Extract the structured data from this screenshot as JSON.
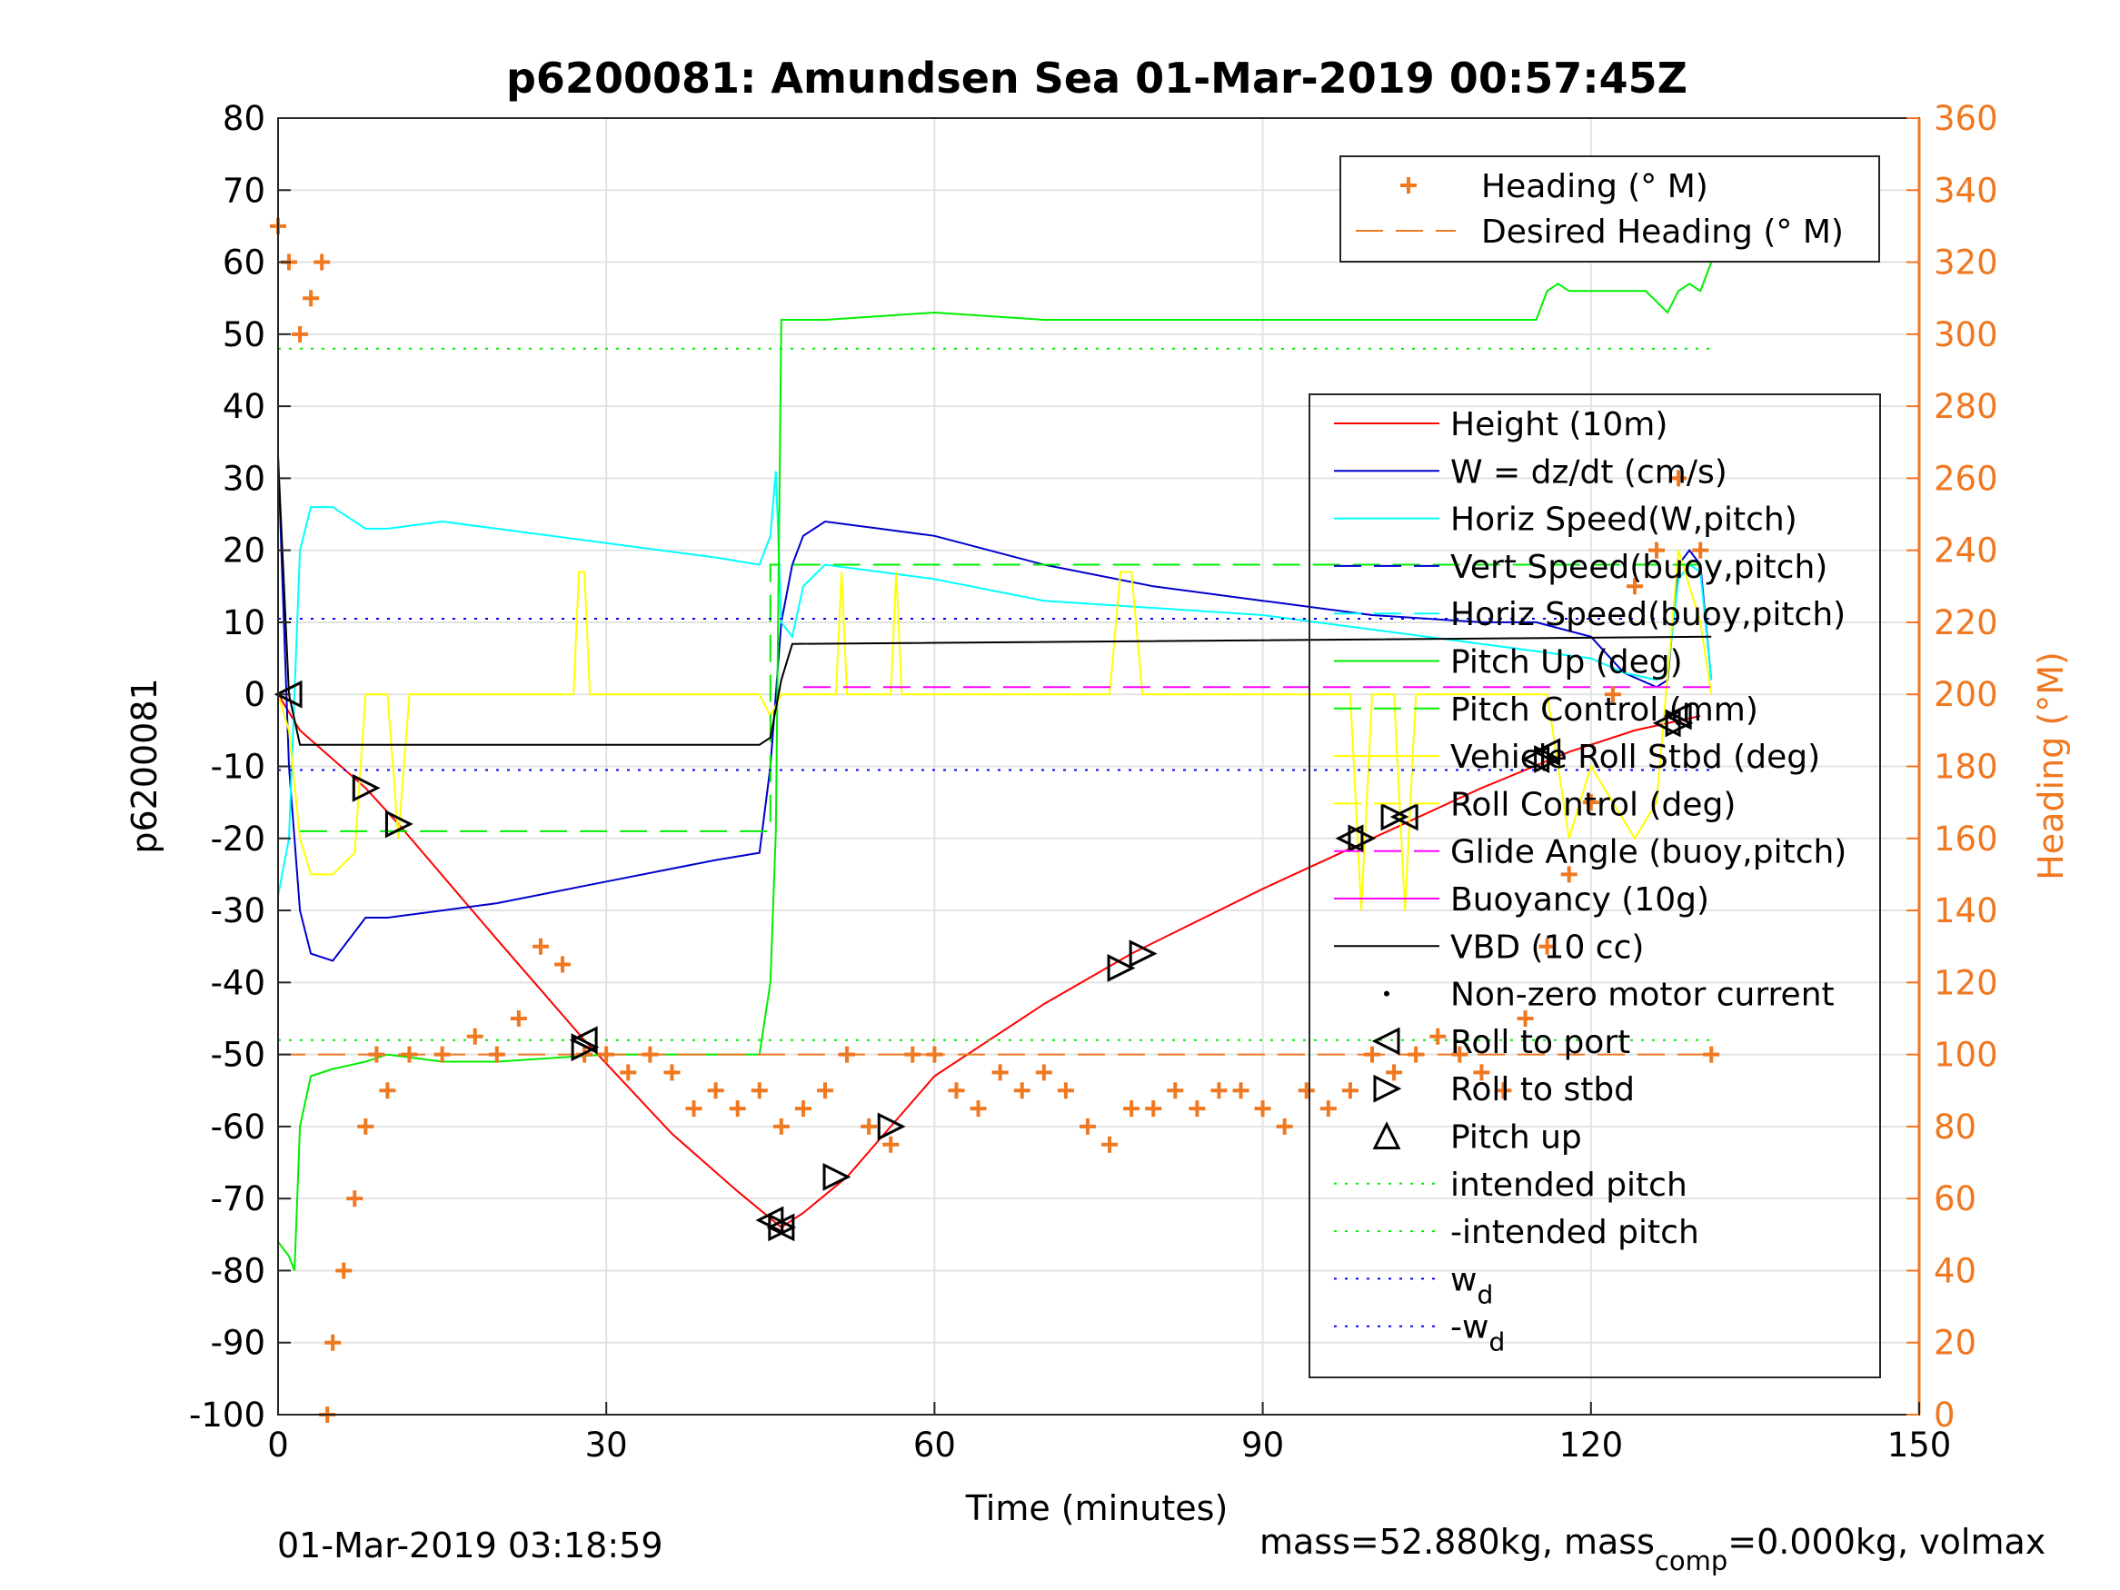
{
  "chart_data": {
    "type": "line",
    "title": "p6200081: Amundsen Sea 01-Mar-2019 00:57:45Z",
    "xlabel": "Time (minutes)",
    "ylabel": "p6200081",
    "y2label": "Heading (°M)",
    "xlim": [
      0,
      150
    ],
    "ylim": [
      -100,
      80
    ],
    "y2lim": [
      0,
      360
    ],
    "xticks": [
      0,
      30,
      60,
      90,
      120,
      150
    ],
    "yticks": [
      -100,
      -90,
      -80,
      -70,
      -60,
      -50,
      -40,
      -30,
      -20,
      -10,
      0,
      10,
      20,
      30,
      40,
      50,
      60,
      70,
      80
    ],
    "y2ticks": [
      0,
      20,
      40,
      60,
      80,
      100,
      120,
      140,
      160,
      180,
      200,
      220,
      240,
      260,
      280,
      300,
      320,
      340,
      360
    ],
    "grid": true,
    "legend_heading": [
      {
        "label": "Heading (° M)",
        "color": "#f07820",
        "style": "plus"
      },
      {
        "label": "Desired Heading (° M)",
        "color": "#f07820",
        "style": "dash"
      }
    ],
    "legend_main": [
      {
        "label": "Height (10m)",
        "color": "#ff0000",
        "style": "solid"
      },
      {
        "label": "W = dz/dt (cm/s)",
        "color": "#0000cc",
        "style": "solid"
      },
      {
        "label": "Horiz Speed(W,pitch)",
        "color": "#00ffff",
        "style": "solid"
      },
      {
        "label": "Vert Speed(buoy,pitch)",
        "color": "#0000cc",
        "style": "dash"
      },
      {
        "label": "Horiz Speed(buoy,pitch)",
        "color": "#00ffff",
        "style": "dash"
      },
      {
        "label": "Pitch Up (deg)",
        "color": "#00ee00",
        "style": "solid"
      },
      {
        "label": "Pitch Control (mm)",
        "color": "#00ee00",
        "style": "dash"
      },
      {
        "label": "Vehicle Roll Stbd (deg)",
        "color": "#ffff00",
        "style": "solid"
      },
      {
        "label": "Roll Control (deg)",
        "color": "#ffff00",
        "style": "dash"
      },
      {
        "label": "Glide Angle (buoy,pitch)",
        "color": "#ff00ff",
        "style": "dash"
      },
      {
        "label": "Buoyancy (10g)",
        "color": "#ff00ff",
        "style": "solid"
      },
      {
        "label": "VBD (10 cc)",
        "color": "#000000",
        "style": "solid"
      },
      {
        "label": "Non-zero motor current",
        "color": "#000000",
        "style": "dot"
      },
      {
        "label": "Roll to port",
        "color": "#000000",
        "style": "tri-left"
      },
      {
        "label": "Roll to stbd",
        "color": "#000000",
        "style": "tri-right"
      },
      {
        "label": "Pitch up",
        "color": "#000000",
        "style": "tri-up"
      },
      {
        "label": "intended pitch",
        "color": "#00ee00",
        "style": "dotted"
      },
      {
        "label": "-intended pitch",
        "color": "#00ee00",
        "style": "dotted"
      },
      {
        "label": "w",
        "sub": "d",
        "color": "#0000ff",
        "style": "dotted"
      },
      {
        "label": "-w",
        "sub": "d",
        "color": "#0000ff",
        "style": "dotted"
      }
    ],
    "series": [
      {
        "name": "Height (10m)",
        "color": "#ff0000",
        "x": [
          0,
          2,
          8,
          11,
          20,
          28,
          36,
          42,
          46,
          48,
          52,
          56,
          60,
          70,
          78,
          90,
          100,
          110,
          118,
          124,
          130
        ],
        "y": [
          0,
          -5,
          -13,
          -18,
          -34,
          -48,
          -61,
          -69,
          -74,
          -72,
          -67,
          -60,
          -53,
          -43,
          -36,
          -27,
          -20,
          -13,
          -8,
          -5,
          -3
        ]
      },
      {
        "name": "W = dz/dt (cm/s)",
        "color": "#0000cc",
        "x": [
          0,
          1,
          2,
          3,
          5,
          8,
          10,
          15,
          20,
          30,
          40,
          44,
          45,
          46,
          47,
          48,
          50,
          55,
          60,
          70,
          80,
          90,
          100,
          110,
          115,
          120,
          123,
          126,
          127,
          128,
          129,
          130,
          131
        ],
        "y": [
          33,
          -10,
          -30,
          -36,
          -37,
          -31,
          -31,
          -30,
          -29,
          -26,
          -23,
          -22,
          -10,
          10,
          18,
          22,
          24,
          23,
          22,
          18,
          15,
          13,
          11,
          10,
          10,
          8,
          3,
          1,
          2,
          18,
          20,
          18,
          2
        ]
      },
      {
        "name": "Horiz Speed(W,pitch)",
        "color": "#00ffff",
        "x": [
          0,
          1,
          2,
          3,
          5,
          8,
          10,
          15,
          20,
          30,
          40,
          44,
          45,
          45.5,
          46,
          47,
          48,
          50,
          55,
          60,
          70,
          80,
          90,
          100,
          110,
          115,
          120,
          123,
          126,
          127,
          128,
          129,
          130,
          131
        ],
        "y": [
          -28,
          -20,
          20,
          26,
          26,
          23,
          23,
          24,
          23,
          21,
          19,
          18,
          22,
          31,
          10,
          8,
          15,
          18,
          17,
          16,
          13,
          12,
          11,
          9,
          7,
          6,
          5,
          3,
          2,
          3,
          16,
          18,
          17,
          2
        ]
      },
      {
        "name": "Pitch Up (deg)",
        "color": "#00ee00",
        "x": [
          0,
          1,
          1.5,
          2,
          3,
          5,
          8,
          10,
          15,
          20,
          30,
          40,
          44,
          45,
          45.5,
          46,
          47,
          50,
          60,
          70,
          80,
          90,
          100,
          110,
          115,
          116,
          117,
          118,
          120,
          125,
          127,
          128,
          129,
          130,
          131
        ],
        "y": [
          -76,
          -78,
          -80,
          -60,
          -53,
          -52,
          -51,
          -50,
          -51,
          -51,
          -50,
          -50,
          -50,
          -40,
          -19,
          52,
          52,
          52,
          53,
          52,
          52,
          52,
          52,
          52,
          52,
          56,
          57,
          56,
          56,
          56,
          53,
          56,
          57,
          56,
          60
        ]
      },
      {
        "name": "Vehicle Roll Stbd (deg)",
        "color": "#ffff00",
        "x": [
          0,
          1,
          2,
          3,
          5,
          7,
          8,
          9,
          10,
          11,
          12,
          14,
          20,
          27,
          27.5,
          28,
          28.5,
          29,
          35,
          40,
          44,
          45,
          46,
          50,
          51,
          51.5,
          52,
          55,
          56,
          56.5,
          57,
          60,
          70,
          76,
          77,
          78,
          79,
          80,
          90,
          97,
          98,
          99,
          100,
          102,
          103,
          104,
          110,
          116,
          117,
          118,
          120,
          122,
          124,
          126,
          128,
          130,
          131
        ],
        "y": [
          0,
          -5,
          -20,
          -25,
          -25,
          -22,
          0,
          0,
          0,
          -20,
          0,
          0,
          0,
          0,
          17,
          17,
          0,
          0,
          0,
          0,
          0,
          -3,
          0,
          0,
          0,
          17,
          0,
          0,
          0,
          17,
          0,
          0,
          0,
          0,
          17,
          17,
          0,
          0,
          0,
          0,
          0,
          -30,
          0,
          0,
          -30,
          0,
          0,
          0,
          -10,
          -20,
          -10,
          -15,
          -20,
          -15,
          20,
          10,
          0
        ]
      },
      {
        "name": "Pitch Control (mm)",
        "color": "#00ee00",
        "style": "dash",
        "x": [
          2,
          45,
          45,
          131
        ],
        "y": [
          -19,
          -19,
          18,
          18
        ]
      },
      {
        "name": "VBD (10 cc)",
        "color": "#000000",
        "x": [
          0,
          1,
          2,
          44,
          45,
          46,
          47,
          131
        ],
        "y": [
          33,
          0,
          -7,
          -7,
          -6,
          2,
          7,
          8
        ]
      },
      {
        "name": "Glide Angle (buoy,pitch)",
        "color": "#ff00ff",
        "style": "dash",
        "x": [
          48,
          131
        ],
        "y": [
          1,
          1
        ]
      },
      {
        "name": "intended pitch",
        "color": "#00ee00",
        "style": "dotted",
        "x": [
          0,
          131
        ],
        "y": [
          48,
          48
        ]
      },
      {
        "name": "-intended pitch",
        "color": "#00ee00",
        "style": "dotted",
        "x": [
          0,
          131
        ],
        "y": [
          -48,
          -48
        ]
      },
      {
        "name": "w_d",
        "color": "#0000ff",
        "style": "dotted",
        "x": [
          0,
          131
        ],
        "y": [
          10.5,
          10.5
        ]
      },
      {
        "name": "-w_d",
        "color": "#0000ff",
        "style": "dotted",
        "x": [
          0,
          131
        ],
        "y": [
          -10.5,
          -10.5
        ]
      }
    ],
    "heading_series": {
      "name": "Heading (° M)",
      "x": [
        0,
        1,
        2,
        3,
        4,
        4.5,
        5,
        6,
        7,
        8,
        9,
        10,
        12,
        15,
        18,
        20,
        22,
        24,
        26,
        28,
        30,
        32,
        34,
        36,
        38,
        40,
        42,
        44,
        46,
        48,
        50,
        52,
        54,
        56,
        58,
        60,
        62,
        64,
        66,
        68,
        70,
        72,
        74,
        76,
        78,
        80,
        82,
        84,
        86,
        88,
        90,
        92,
        94,
        96,
        98,
        100,
        102,
        104,
        106,
        108,
        110,
        112,
        114,
        116,
        118,
        120,
        122,
        124,
        126,
        128,
        130,
        131
      ],
      "y": [
        330,
        320,
        300,
        310,
        320,
        0,
        20,
        40,
        60,
        80,
        100,
        90,
        100,
        100,
        105,
        100,
        110,
        130,
        125,
        100,
        100,
        95,
        100,
        95,
        85,
        90,
        85,
        90,
        80,
        85,
        90,
        100,
        80,
        75,
        100,
        100,
        90,
        85,
        95,
        90,
        95,
        90,
        80,
        75,
        85,
        85,
        90,
        85,
        90,
        90,
        85,
        80,
        90,
        85,
        90,
        100,
        95,
        100,
        105,
        100,
        95,
        90,
        110,
        130,
        150,
        170,
        200,
        230,
        240,
        260,
        240,
        100
      ]
    },
    "desired_heading": {
      "name": "Desired Heading (° M)",
      "value": 100
    },
    "markers": {
      "roll_to_port": {
        "x": [
          1,
          28,
          45,
          46,
          98,
          103,
          115,
          116,
          127,
          128
        ],
        "y": [
          0,
          -48,
          -73,
          -74,
          -20,
          -17,
          -9,
          -8,
          -4,
          -3
        ]
      },
      "roll_to_stbd": {
        "x": [
          8,
          11,
          28,
          46,
          51,
          56,
          77,
          79,
          99,
          102,
          116,
          128
        ],
        "y": [
          -13,
          -18,
          -49,
          -74,
          -67,
          -60,
          -38,
          -36,
          -20,
          -17,
          -9,
          -4
        ]
      }
    }
  },
  "footer": {
    "left": "01-Mar-2019 03:18:59",
    "right_prefix": "mass=52.880kg, mass",
    "right_sub": "comp",
    "right_suffix": "=0.000kg, volmax"
  }
}
